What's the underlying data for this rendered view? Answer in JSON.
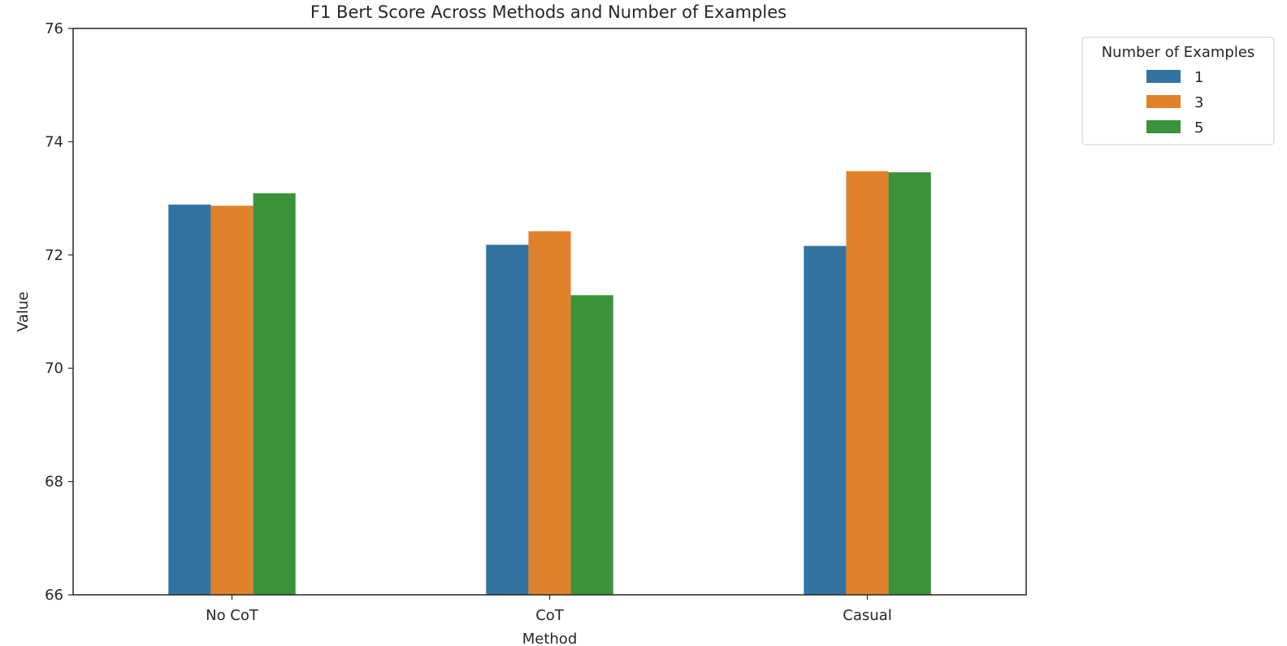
{
  "chart_data": {
    "type": "bar",
    "title": "F1 Bert Score Across Methods and Number of Examples",
    "xlabel": "Method",
    "ylabel": "Value",
    "categories": [
      "No CoT",
      "CoT",
      "Casual"
    ],
    "ylim": [
      66,
      76
    ],
    "yticks": [
      "66",
      "68",
      "70",
      "72",
      "74",
      "76"
    ],
    "grid": false,
    "legend": {
      "title": "Number of Examples",
      "placement": "outside-top-right"
    },
    "series": [
      {
        "name": "1",
        "color": "#3274a1",
        "values": [
          72.89,
          72.18,
          72.16
        ]
      },
      {
        "name": "3",
        "color": "#e1812c",
        "values": [
          72.87,
          72.42,
          73.48
        ]
      },
      {
        "name": "5",
        "color": "#3a923a",
        "values": [
          73.09,
          71.29,
          73.46
        ]
      }
    ]
  }
}
